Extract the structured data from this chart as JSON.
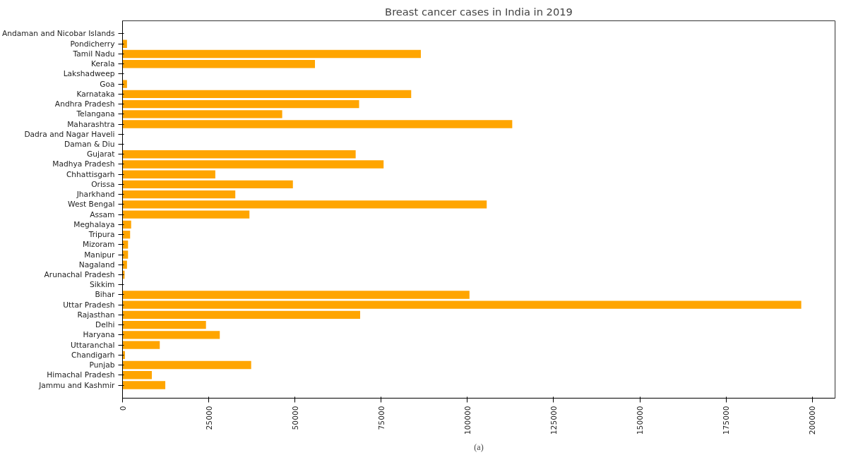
{
  "chart_data": {
    "type": "bar",
    "orientation": "horizontal",
    "title": "Breast cancer cases in India in 2019",
    "categories": [
      "Andaman and Nicobar Islands",
      "Pondicherry",
      "Tamil Nadu",
      "Kerala",
      "Lakshadweep",
      "Goa",
      "Karnataka",
      "Andhra Pradesh",
      "Telangana",
      "Maharashtra",
      "Dadra and Nagar Haveli",
      "Daman & Diu",
      "Gujarat",
      "Madhya Pradesh",
      "Chhattisgarh",
      "Orissa",
      "Jharkhand",
      "West Bengal",
      "Assam",
      "Meghalaya",
      "Tripura",
      "Mizoram",
      "Manipur",
      "Nagaland",
      "Arunachal Pradesh",
      "Sikkim",
      "Bihar",
      "Uttar Pradesh",
      "Rajasthan",
      "Delhi",
      "Haryana",
      "Uttaranchal",
      "Chandigarh",
      "Punjab",
      "Himachal Pradesh",
      "Jammu and Kashmir"
    ],
    "values": [
      0,
      1300,
      86500,
      55800,
      0,
      1300,
      83700,
      68600,
      46300,
      113000,
      0,
      0,
      67600,
      75700,
      26900,
      49400,
      32700,
      105600,
      36800,
      2500,
      2200,
      1600,
      1600,
      1300,
      600,
      0,
      100600,
      196800,
      68900,
      24200,
      28200,
      10800,
      700,
      37300,
      8500,
      12400
    ],
    "color": "#ffa500",
    "xlim": [
      0,
      206600
    ],
    "xticks": [
      0,
      25000,
      50000,
      75000,
      100000,
      125000,
      150000,
      175000,
      200000
    ],
    "grid": false,
    "annotations": [
      "(a)"
    ]
  }
}
